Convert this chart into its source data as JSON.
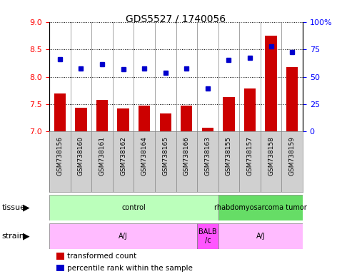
{
  "title": "GDS5527 / 1740056",
  "samples": [
    "GSM738156",
    "GSM738160",
    "GSM738161",
    "GSM738162",
    "GSM738164",
    "GSM738165",
    "GSM738166",
    "GSM738163",
    "GSM738155",
    "GSM738157",
    "GSM738158",
    "GSM738159"
  ],
  "bar_values": [
    7.7,
    7.43,
    7.58,
    7.42,
    7.47,
    7.33,
    7.47,
    7.07,
    7.63,
    7.78,
    8.75,
    8.17
  ],
  "dot_values": [
    8.32,
    8.15,
    8.23,
    8.14,
    8.15,
    8.07,
    8.15,
    7.79,
    8.3,
    8.35,
    8.55,
    8.45
  ],
  "ylim_left": [
    7.0,
    9.0
  ],
  "ylim_right": [
    0,
    100
  ],
  "bar_color": "#cc0000",
  "dot_color": "#0000cc",
  "tissue_groups": [
    {
      "label": "control",
      "start": 0,
      "end": 8,
      "color": "#bbffbb"
    },
    {
      "label": "rhabdomyosarcoma tumor",
      "start": 8,
      "end": 12,
      "color": "#66dd66"
    }
  ],
  "strain_groups": [
    {
      "label": "A/J",
      "start": 0,
      "end": 7,
      "color": "#ffbbff"
    },
    {
      "label": "BALB\n/c",
      "start": 7,
      "end": 8,
      "color": "#ff55ff"
    },
    {
      "label": "A/J",
      "start": 8,
      "end": 12,
      "color": "#ffbbff"
    }
  ],
  "legend_items": [
    {
      "color": "#cc0000",
      "label": "transformed count"
    },
    {
      "color": "#0000cc",
      "label": "percentile rank within the sample"
    }
  ],
  "right_yticks": [
    0,
    25,
    50,
    75,
    100
  ],
  "right_yticklabels": [
    "0",
    "25",
    "50",
    "75",
    "100%"
  ],
  "left_yticks": [
    7.0,
    7.5,
    8.0,
    8.5,
    9.0
  ],
  "xticklabel_bg": "#d0d0d0",
  "label_left_tissue": "tissue",
  "label_left_strain": "strain"
}
